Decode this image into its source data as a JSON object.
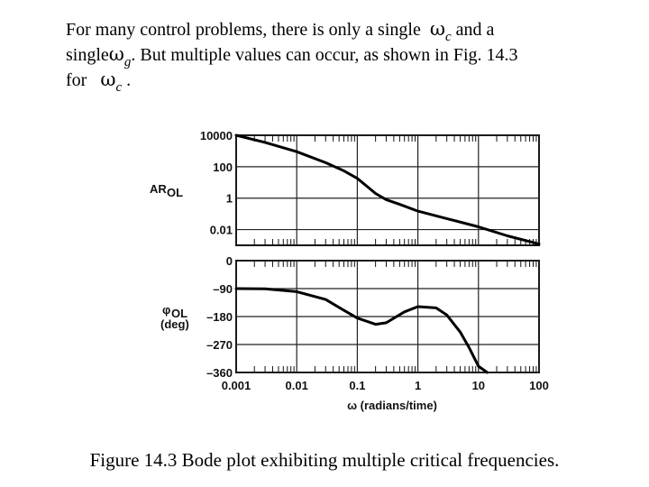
{
  "intro": {
    "line1_a": "For many control problems, there is only a single",
    "line1_b": "and a",
    "line2_a": "single",
    "line2_b": ". But multiple values can occur, as shown in Fig. 14.3",
    "line3_a": "for",
    "line3_b": ".",
    "omega": "ω",
    "sub_c": "c",
    "sub_g": "g"
  },
  "caption": "Figure 14.3 Bode plot exhibiting multiple critical frequencies.",
  "chart_data": {
    "type": "line",
    "xlabel": "ω (radians/time)",
    "xscale": "log",
    "xlim": [
      0.001,
      100
    ],
    "x_ticks": [
      "0.001",
      "0.01",
      "0.1",
      "1",
      "10",
      "100"
    ],
    "x_tick_values": [
      0.001,
      0.01,
      0.1,
      1,
      10,
      100
    ],
    "panels": [
      {
        "name": "magnitude",
        "ylabel_main": "AR",
        "ylabel_sub": "OL",
        "yscale": "log",
        "ylim": [
          0.001,
          10000
        ],
        "y_ticks": [
          "10000",
          "100",
          "1",
          "0.01"
        ],
        "y_tick_values": [
          10000,
          100,
          1,
          0.01
        ],
        "grid": true,
        "series": [
          {
            "x": [
              0.001,
              0.003,
              0.01,
              0.03,
              0.06,
              0.1,
              0.15,
              0.2,
              0.3,
              0.5,
              1,
              3,
              10,
              30,
              100
            ],
            "y": [
              10000,
              3500,
              900,
              180,
              55,
              18,
              5,
              2,
              0.8,
              0.4,
              0.15,
              0.05,
              0.015,
              0.004,
              0.0012
            ]
          }
        ]
      },
      {
        "name": "phase",
        "ylabel_main": "φ",
        "ylabel_sub": "OL",
        "ylabel_unit": "(deg)",
        "ylim": [
          -360,
          0
        ],
        "y_ticks": [
          "0",
          "–90",
          "–180",
          "–270",
          "–360"
        ],
        "y_tick_values": [
          0,
          -90,
          -180,
          -270,
          -360
        ],
        "grid": true,
        "series": [
          {
            "x": [
              0.001,
              0.003,
              0.01,
              0.03,
              0.06,
              0.1,
              0.2,
              0.3,
              0.6,
              1,
              2,
              3,
              5,
              7,
              10,
              14
            ],
            "y": [
              -90,
              -91,
              -100,
              -125,
              -160,
              -185,
              -205,
              -200,
              -165,
              -148,
              -152,
              -175,
              -230,
              -280,
              -340,
              -360
            ]
          }
        ]
      }
    ]
  }
}
